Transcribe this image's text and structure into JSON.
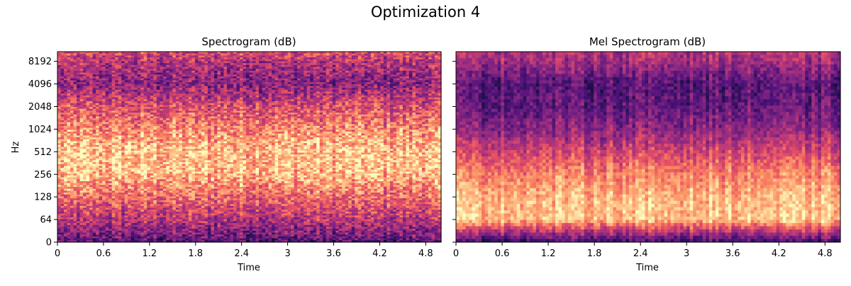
{
  "figure": {
    "title": "Optimization 4"
  },
  "chart_data": [
    {
      "type": "heatmap",
      "title": "Spectrogram (dB)",
      "xlabel": "Time",
      "ylabel": "Hz",
      "x_ticks": [
        "0",
        "0.6",
        "1.2",
        "1.8",
        "2.4",
        "3",
        "3.6",
        "4.2",
        "4.8"
      ],
      "x_tick_values": [
        0,
        0.6,
        1.2,
        1.8,
        2.4,
        3.0,
        3.6,
        4.2,
        4.8
      ],
      "xlim": [
        0,
        5.0
      ],
      "y_ticks": [
        "0",
        "64",
        "128",
        "256",
        "512",
        "1024",
        "2048",
        "4096",
        "8192"
      ],
      "y_tick_values": [
        0,
        64,
        128,
        256,
        512,
        1024,
        2048,
        4096,
        8192
      ],
      "yscale": "log2-symlog",
      "ylim": [
        0,
        11025
      ],
      "colormap": "magma",
      "energy_profile": [
        {
          "hz": 0,
          "level": 0.25
        },
        {
          "hz": 20,
          "level": 0.35
        },
        {
          "hz": 64,
          "level": 0.5
        },
        {
          "hz": 128,
          "level": 0.68
        },
        {
          "hz": 256,
          "level": 0.85
        },
        {
          "hz": 512,
          "level": 0.88
        },
        {
          "hz": 1024,
          "level": 0.75
        },
        {
          "hz": 2048,
          "level": 0.6
        },
        {
          "hz": 4096,
          "level": 0.38
        },
        {
          "hz": 8192,
          "level": 0.5
        },
        {
          "hz": 11025,
          "level": 0.6
        }
      ]
    },
    {
      "type": "heatmap",
      "title": "Mel Spectrogram (dB)",
      "xlabel": "Time",
      "ylabel": "",
      "x_ticks": [
        "0",
        "0.6",
        "1.2",
        "1.8",
        "2.4",
        "3",
        "3.6",
        "4.2",
        "4.8"
      ],
      "x_tick_values": [
        0,
        0.6,
        1.2,
        1.8,
        2.4,
        3.0,
        3.6,
        4.2,
        4.8
      ],
      "xlim": [
        0,
        5.0
      ],
      "y_tick_values": [
        0,
        64,
        128,
        256,
        512,
        1024,
        2048,
        4096,
        8192
      ],
      "yscale": "log2-symlog",
      "ylim": [
        0,
        11025
      ],
      "colormap": "magma",
      "energy_profile": [
        {
          "hz": 0,
          "level": 0.2
        },
        {
          "hz": 20,
          "level": 0.4
        },
        {
          "hz": 64,
          "level": 0.88
        },
        {
          "hz": 128,
          "level": 0.85
        },
        {
          "hz": 256,
          "level": 0.75
        },
        {
          "hz": 512,
          "level": 0.58
        },
        {
          "hz": 1024,
          "level": 0.4
        },
        {
          "hz": 2048,
          "level": 0.3
        },
        {
          "hz": 4096,
          "level": 0.27
        },
        {
          "hz": 8192,
          "level": 0.45
        },
        {
          "hz": 11025,
          "level": 0.5
        }
      ]
    }
  ]
}
